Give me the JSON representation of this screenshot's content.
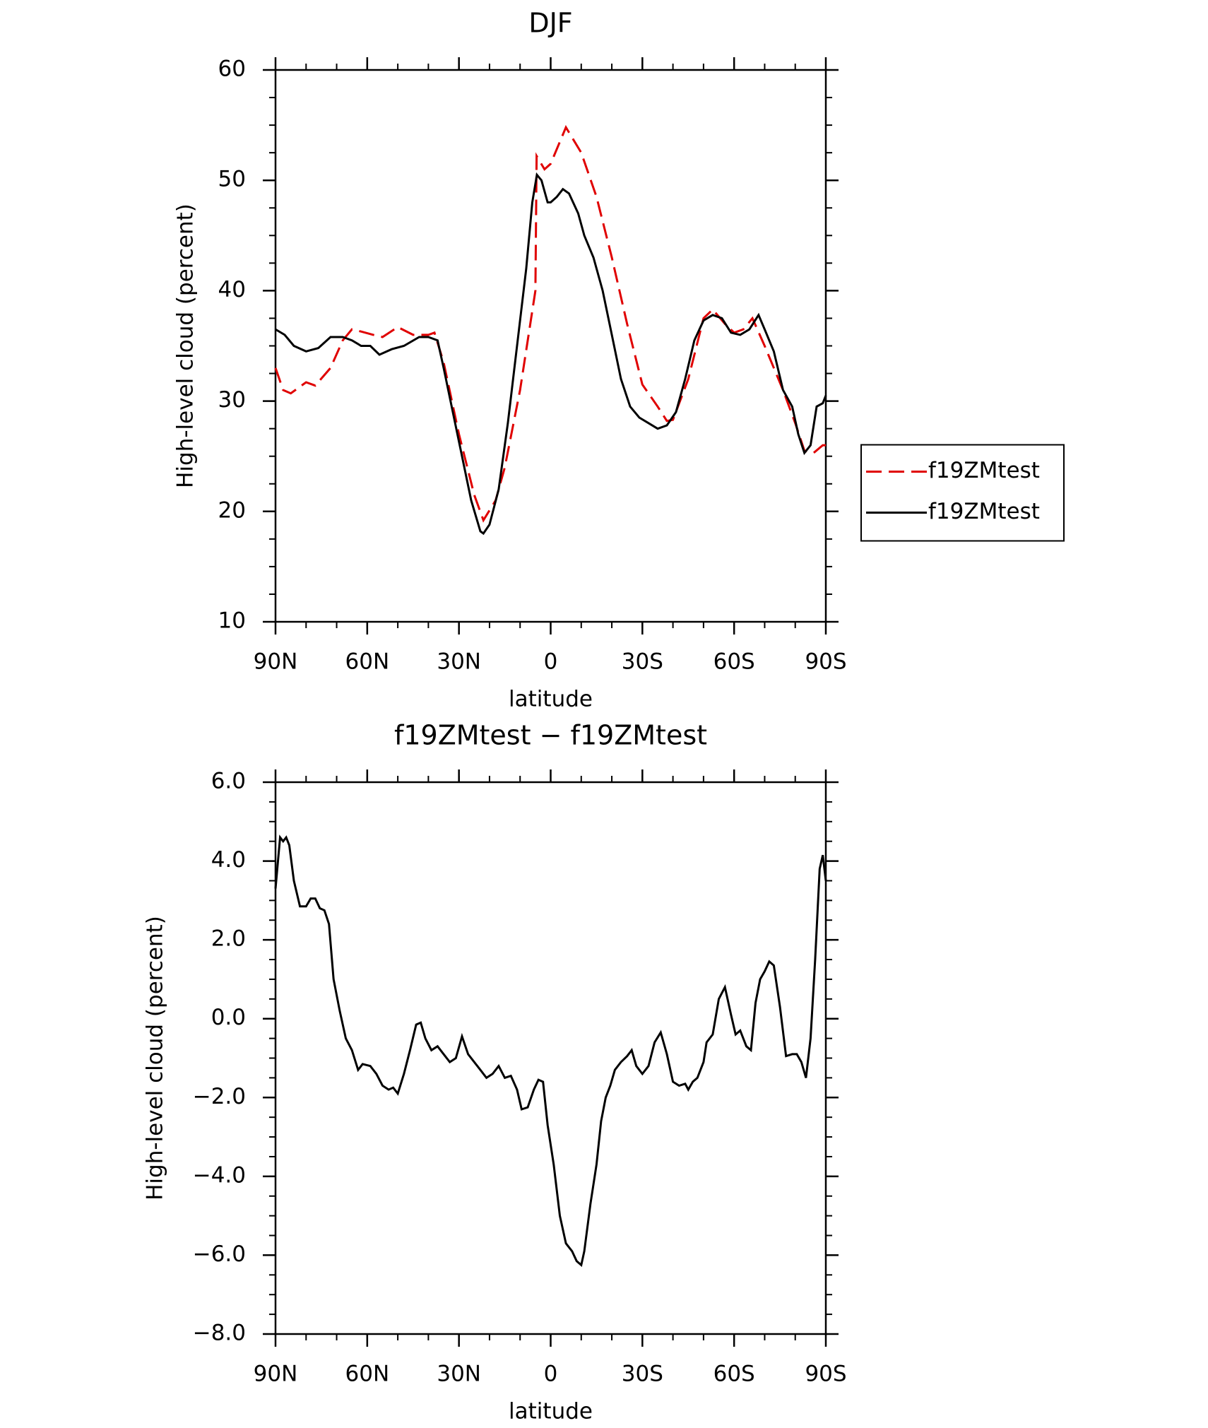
{
  "chart_data": [
    {
      "type": "line",
      "title": "DJF",
      "xlabel": "latitude",
      "ylabel": "High-level cloud (percent)",
      "xlim": [
        90,
        -90
      ],
      "xticks": [
        {
          "value": 90,
          "label": "90N"
        },
        {
          "value": 60,
          "label": "60N"
        },
        {
          "value": 30,
          "label": "30N"
        },
        0,
        {
          "value": -30,
          "label": "30S"
        },
        {
          "value": -60,
          "label": "60S"
        },
        {
          "value": -90,
          "label": "90S"
        }
      ],
      "ylim": [
        10,
        60
      ],
      "yticks": [
        10,
        20,
        30,
        40,
        50,
        60
      ],
      "legend": "right",
      "series": [
        {
          "name": "f19ZMtest",
          "color": "#e00000",
          "linestyle": "dashed",
          "x": [
            90,
            87.5,
            85,
            80,
            77,
            72,
            68,
            65,
            62,
            58,
            55,
            50,
            45,
            40,
            38,
            35,
            30,
            25,
            22,
            18,
            15,
            10,
            5,
            4.6,
            2,
            0,
            -5,
            -10,
            -15,
            -20,
            -25,
            -30,
            -35,
            -38,
            -40,
            -45,
            -50,
            -53,
            -57,
            -60,
            -63,
            -66,
            -70,
            -73,
            -76,
            -80,
            -83,
            -86,
            -89,
            -90
          ],
          "values": [
            33,
            31,
            30.7,
            31.7,
            31.4,
            33,
            35.5,
            36.5,
            36.3,
            36,
            35.8,
            36.7,
            36,
            36,
            36.2,
            33.5,
            27,
            21.5,
            19.2,
            21,
            24,
            31,
            40,
            52.2,
            51,
            51.5,
            54.8,
            52.5,
            48.5,
            43,
            37,
            31.5,
            29.5,
            28.2,
            28.3,
            32,
            37.5,
            38.3,
            37,
            36.2,
            36.5,
            37.5,
            35,
            33,
            31,
            28,
            25.5,
            25.3,
            26,
            26
          ]
        },
        {
          "name": "f19ZMtest",
          "color": "#000000",
          "linestyle": "solid",
          "x": [
            90,
            87,
            84,
            80,
            76,
            72,
            68,
            65,
            62,
            59,
            56,
            52,
            48,
            43,
            40,
            37,
            35,
            32,
            29,
            26,
            23,
            22,
            20,
            17,
            14,
            11,
            8,
            6,
            4.5,
            3,
            1,
            0,
            -2,
            -4,
            -6,
            -9,
            -11,
            -14,
            -17,
            -20,
            -23,
            -26,
            -29,
            -32,
            -35,
            -38,
            -41,
            -44,
            -47,
            -50,
            -53,
            -56,
            -59,
            -62,
            -65,
            -68,
            -70,
            -73,
            -76,
            -79,
            -81,
            -83,
            -85,
            -87,
            -89,
            -90
          ],
          "values": [
            36.5,
            36,
            35,
            34.5,
            34.8,
            35.8,
            35.8,
            35.5,
            35,
            35,
            34.2,
            34.7,
            35,
            35.8,
            35.8,
            35.5,
            33,
            29,
            25,
            21,
            18.2,
            18,
            18.8,
            22,
            28,
            35,
            42,
            48,
            50.5,
            50,
            48,
            48,
            48.5,
            49.2,
            48.8,
            47,
            45,
            43,
            40,
            36,
            32,
            29.5,
            28.5,
            28,
            27.5,
            27.8,
            29,
            32,
            35.5,
            37.3,
            37.8,
            37.5,
            36.2,
            36,
            36.5,
            37.8,
            36.5,
            34.5,
            31,
            29.5,
            27,
            25.3,
            26,
            29.5,
            29.8,
            30.5
          ]
        }
      ]
    },
    {
      "type": "line",
      "title": "f19ZMtest − f19ZMtest",
      "xlabel": "latitude",
      "ylabel": "High-level cloud (percent)",
      "xlim": [
        90,
        -90
      ],
      "xticks": [
        {
          "value": 90,
          "label": "90N"
        },
        {
          "value": 60,
          "label": "60N"
        },
        {
          "value": 30,
          "label": "30N"
        },
        0,
        {
          "value": -30,
          "label": "30S"
        },
        {
          "value": -60,
          "label": "60S"
        },
        {
          "value": -90,
          "label": "90S"
        }
      ],
      "ylim": [
        -8,
        6
      ],
      "yticks": [
        {
          "value": -8,
          "label": "−8.0"
        },
        {
          "value": -6,
          "label": "−6.0"
        },
        {
          "value": -4,
          "label": "−4.0"
        },
        {
          "value": -2,
          "label": "−2.0"
        },
        {
          "value": 0,
          "label": "0.0"
        },
        {
          "value": 2,
          "label": "2.0"
        },
        {
          "value": 4,
          "label": "4.0"
        },
        {
          "value": 6,
          "label": "6.0"
        }
      ],
      "series": [
        {
          "color": "#000000",
          "linestyle": "solid",
          "x": [
            90,
            88.5,
            87.5,
            86.5,
            85.5,
            84,
            82,
            80,
            78.5,
            77,
            75.5,
            74,
            72.5,
            71,
            69,
            67,
            65,
            63,
            61.5,
            59,
            57,
            55,
            53,
            51.5,
            50,
            48,
            46,
            44,
            42.5,
            41,
            39,
            37,
            35,
            33,
            31,
            29,
            27,
            25,
            23,
            21,
            19,
            17,
            15,
            13,
            11,
            9.5,
            7.5,
            5.5,
            4,
            2.5,
            1,
            -1,
            -3,
            -5,
            -7,
            -8.5,
            -10,
            -11,
            -13,
            -15,
            -16.5,
            -18,
            -19.5,
            -21,
            -23,
            -25,
            -26.5,
            -28,
            -30,
            -32,
            -34,
            -36,
            -38,
            -40,
            -42,
            -44,
            -45,
            -46.5,
            -48,
            -50,
            -51,
            -53,
            -55,
            -57,
            -59,
            -60.5,
            -62,
            -64,
            -65.5,
            -67,
            -68.5,
            -70,
            -71.5,
            -73,
            -75,
            -77,
            -79,
            -80.5,
            -82,
            -83.5,
            -85,
            -86.5,
            -88,
            -89,
            -90
          ],
          "values": [
            3.3,
            4.6,
            4.5,
            4.6,
            4.4,
            3.5,
            2.85,
            2.85,
            3.05,
            3.05,
            2.8,
            2.75,
            2.4,
            1.0,
            0.2,
            -0.5,
            -0.8,
            -1.3,
            -1.15,
            -1.2,
            -1.4,
            -1.7,
            -1.8,
            -1.75,
            -1.9,
            -1.4,
            -0.8,
            -0.15,
            -0.1,
            -0.5,
            -0.8,
            -0.7,
            -0.9,
            -1.1,
            -1.0,
            -0.45,
            -0.9,
            -1.1,
            -1.3,
            -1.5,
            -1.4,
            -1.2,
            -1.5,
            -1.45,
            -1.8,
            -2.3,
            -2.25,
            -1.8,
            -1.55,
            -1.6,
            -2.7,
            -3.7,
            -5.0,
            -5.7,
            -5.9,
            -6.15,
            -6.25,
            -5.9,
            -4.7,
            -3.7,
            -2.6,
            -2.0,
            -1.7,
            -1.3,
            -1.1,
            -0.95,
            -0.8,
            -1.2,
            -1.4,
            -1.2,
            -0.6,
            -0.35,
            -0.9,
            -1.6,
            -1.7,
            -1.65,
            -1.8,
            -1.6,
            -1.5,
            -1.1,
            -0.6,
            -0.4,
            0.5,
            0.8,
            0.1,
            -0.4,
            -0.3,
            -0.7,
            -0.8,
            0.4,
            1.0,
            1.2,
            1.45,
            1.35,
            0.3,
            -0.95,
            -0.9,
            -0.9,
            -1.1,
            -1.5,
            -0.5,
            1.5,
            3.8,
            4.15,
            3.5
          ]
        }
      ]
    }
  ]
}
